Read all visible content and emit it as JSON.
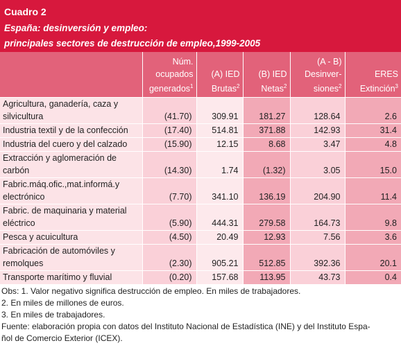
{
  "header": {
    "title": "Cuadro 2",
    "subtitle": [
      "España: desinversión y empleo:",
      "principales sectores de destrucción de empleo,1999-2005"
    ]
  },
  "table": {
    "columns": [
      {
        "lines": [
          "Núm.",
          "ocupados",
          "generados"
        ],
        "sup": "1"
      },
      {
        "lines": [
          "(A) IED",
          "Brutas"
        ],
        "sup": "2"
      },
      {
        "lines": [
          "(B) IED",
          "Netas"
        ],
        "sup": "2"
      },
      {
        "lines": [
          "(A - B)",
          "Desinver-",
          "siones"
        ],
        "sup": "2"
      },
      {
        "lines": [
          "ERES",
          "Extinción"
        ],
        "sup": "3"
      }
    ],
    "rows": [
      {
        "label": [
          "Agricultura, ganadería, caza y",
          "silvicultura"
        ],
        "values": [
          "(41.70)",
          "309.91",
          "181.27",
          "128.64",
          "2.6"
        ]
      },
      {
        "label": [
          "Industria textil y de la confección"
        ],
        "values": [
          "(17.40)",
          "514.81",
          "371.88",
          "142.93",
          "31.4"
        ]
      },
      {
        "label": [
          "Industria del cuero y del calzado"
        ],
        "values": [
          "(15.90)",
          "12.15",
          "8.68",
          "3.47",
          "4.8"
        ]
      },
      {
        "label": [
          "Extracción y aglomeración de",
          "carbón"
        ],
        "values": [
          "(14.30)",
          "1.74",
          "(1.32)",
          "3.05",
          "15.0"
        ]
      },
      {
        "label": [
          "Fabric.máq.ofic.,mat.informá.y",
          "electrónico"
        ],
        "values": [
          "(7.70)",
          "341.10",
          "136.19",
          "204.90",
          "11.4"
        ]
      },
      {
        "label": [
          "Fabric. de maquinaria y material",
          "eléctrico"
        ],
        "values": [
          "(5.90)",
          "444.31",
          "279.58",
          "164.73",
          "9.8"
        ]
      },
      {
        "label": [
          "Pesca y acuicultura"
        ],
        "values": [
          "(4.50)",
          "20.49",
          "12.93",
          "7.56",
          "3.6"
        ]
      },
      {
        "label": [
          "Fabricación de automóviles y",
          "remolques"
        ],
        "values": [
          "(2.30)",
          "905.21",
          "512.85",
          "392.36",
          "20.1"
        ]
      },
      {
        "label": [
          "Transporte marítimo y fluvial"
        ],
        "values": [
          "(0.20)",
          "157.68",
          "113.95",
          "43.73",
          "0.4"
        ]
      }
    ]
  },
  "notes": [
    "Obs: 1. Valor negativo significa destrucción de empleo. En miles de trabajadores.",
    "2. En miles de millones de euros.",
    "3. En miles de trabajadores.",
    "Fuente: elaboración propia con datos del Instituto Nacional de Estadística (INE) y del Instituto Espa-",
    "ñol de Comercio Exterior (ICEX)."
  ]
}
